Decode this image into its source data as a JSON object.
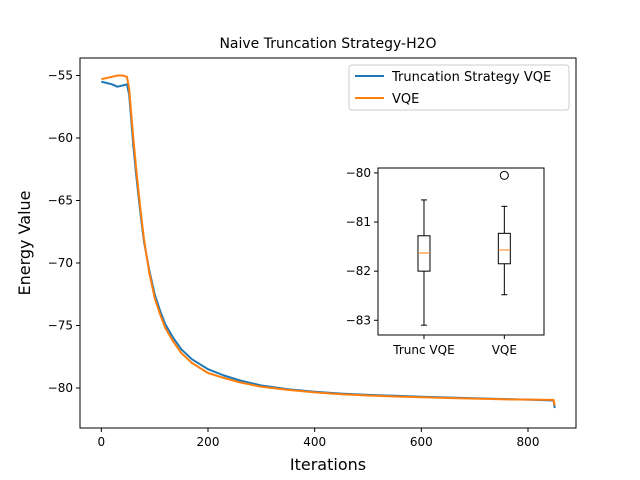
{
  "chart_data": [
    {
      "type": "line",
      "title": "Naive Truncation Strategy-H2O",
      "xlabel": "Iterations",
      "ylabel": "Energy Value",
      "xlim": [
        -40,
        890
      ],
      "ylim": [
        -83.2,
        -53.6
      ],
      "xticks": [
        0,
        200,
        400,
        600,
        800
      ],
      "yticks": [
        -55,
        -60,
        -65,
        -70,
        -75,
        -80
      ],
      "grid": false,
      "legend_position": "top-right",
      "series": [
        {
          "name": "Truncation Strategy VQE",
          "color": "#1f77b4",
          "x": [
            0,
            10,
            20,
            30,
            40,
            48,
            52,
            56,
            60,
            65,
            70,
            75,
            80,
            90,
            100,
            110,
            120,
            135,
            150,
            170,
            200,
            230,
            260,
            300,
            350,
            400,
            450,
            500,
            550,
            600,
            650,
            700,
            750,
            800,
            848,
            850
          ],
          "values": [
            -55.5,
            -55.6,
            -55.7,
            -55.9,
            -55.8,
            -55.7,
            -56.5,
            -58.5,
            -60.6,
            -62.8,
            -64.8,
            -66.6,
            -68.3,
            -70.6,
            -72.5,
            -73.8,
            -74.9,
            -76.0,
            -76.9,
            -77.7,
            -78.5,
            -79.0,
            -79.4,
            -79.8,
            -80.1,
            -80.3,
            -80.45,
            -80.55,
            -80.62,
            -80.7,
            -80.76,
            -80.82,
            -80.88,
            -80.93,
            -81.0,
            -81.6
          ]
        },
        {
          "name": "VQE",
          "color": "#ff7f0e",
          "x": [
            0,
            10,
            20,
            30,
            40,
            48,
            52,
            56,
            60,
            65,
            70,
            75,
            80,
            90,
            100,
            110,
            120,
            135,
            150,
            170,
            200,
            230,
            260,
            300,
            350,
            400,
            450,
            500,
            550,
            600,
            650,
            700,
            750,
            800,
            848,
            850
          ],
          "values": [
            -55.3,
            -55.2,
            -55.1,
            -55.0,
            -55.0,
            -55.1,
            -56.0,
            -58.0,
            -60.0,
            -62.3,
            -64.4,
            -66.3,
            -68.1,
            -70.8,
            -72.8,
            -74.1,
            -75.2,
            -76.3,
            -77.2,
            -78.0,
            -78.8,
            -79.2,
            -79.55,
            -79.9,
            -80.15,
            -80.35,
            -80.5,
            -80.6,
            -80.68,
            -80.74,
            -80.8,
            -80.85,
            -80.9,
            -80.93,
            -80.95,
            -81.4
          ]
        }
      ]
    },
    {
      "type": "box",
      "categories": [
        "Trunc VQE",
        "VQE"
      ],
      "ylim": [
        -83.3,
        -79.9
      ],
      "yticks": [
        -80,
        -81,
        -82,
        -83
      ],
      "boxes": [
        {
          "whisker_low": -83.1,
          "q1": -82.0,
          "median": -81.63,
          "q3": -81.28,
          "whisker_high": -80.55,
          "outliers": []
        },
        {
          "whisker_low": -82.48,
          "q1": -81.85,
          "median": -81.57,
          "q3": -81.23,
          "whisker_high": -80.68,
          "outliers": [
            -80.05
          ]
        }
      ],
      "box_color": "#000000",
      "median_color": "#ff7f0e"
    }
  ]
}
